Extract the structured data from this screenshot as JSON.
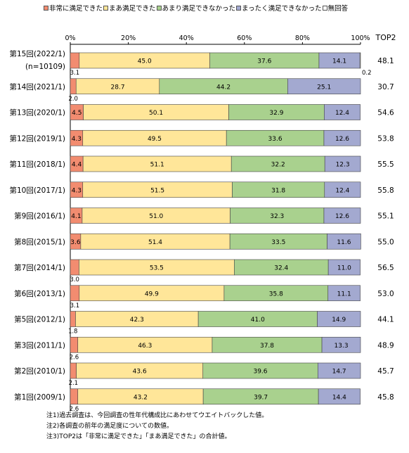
{
  "legend": [
    {
      "label": "非常に満足できた",
      "color": "#F28C70"
    },
    {
      "label": "まあ満足できた",
      "color": "#FFE699"
    },
    {
      "label": "あまり満足できなかった",
      "color": "#A9D18E"
    },
    {
      "label": "まったく満足できなかった",
      "color": "#A3A9D0"
    },
    {
      "label": "無回答",
      "color": "#FFFFFF"
    }
  ],
  "top2_header": "TOP2",
  "notes": [
    "注1)過去調査は、今回調査の性年代構成比にあわせてウエイトバックした値。",
    "注2)各調査の前年の満足度についての数値。",
    "注3)TOP2は「非常に満足できた」「まあ満足できた」の合計値。"
  ],
  "chart_data": {
    "type": "bar",
    "orientation": "horizontal",
    "stacked": true,
    "percent": true,
    "xlim": [
      0,
      100
    ],
    "x_ticks": [
      "0%",
      "20%",
      "40%",
      "60%",
      "80%",
      "100%"
    ],
    "categories": [
      {
        "label": "第15回(2022/1)",
        "sublabel": "(n=10109)"
      },
      {
        "label": "第14回(2021/1)"
      },
      {
        "label": "第13回(2020/1)"
      },
      {
        "label": "第12回(2019/1)"
      },
      {
        "label": "第11回(2018/1)"
      },
      {
        "label": "第10回(2017/1)"
      },
      {
        "label": "第9回(2016/1)"
      },
      {
        "label": "第8回(2015/1)"
      },
      {
        "label": "第7回(2014/1)"
      },
      {
        "label": "第6回(2013/1)"
      },
      {
        "label": "第5回(2012/1)"
      },
      {
        "label": "第3回(2011/1)"
      },
      {
        "label": "第2回(2010/1)"
      },
      {
        "label": "第1回(2009/1)"
      }
    ],
    "series": [
      {
        "name": "非常に満足できた",
        "color": "#F28C70",
        "values": [
          3.1,
          2.0,
          4.5,
          4.3,
          4.4,
          4.3,
          4.1,
          3.6,
          3.0,
          3.1,
          1.8,
          2.6,
          2.1,
          2.6
        ],
        "labels": [
          "3.1",
          "2.0",
          "4.5",
          "4.3",
          "4.4",
          "4.3",
          "4.1",
          "3.6",
          "3.0",
          "3.1",
          "1.8",
          "2.6",
          "2.1",
          "2.6"
        ]
      },
      {
        "name": "まあ満足できた",
        "color": "#FFE699",
        "values": [
          45.0,
          28.7,
          50.1,
          49.5,
          51.1,
          51.5,
          51.0,
          51.4,
          53.5,
          49.9,
          42.3,
          46.3,
          43.6,
          43.2
        ],
        "labels": [
          "45.0",
          "28.7",
          "50.1",
          "49.5",
          "51.1",
          "51.5",
          "51.0",
          "51.4",
          "53.5",
          "49.9",
          "42.3",
          "46.3",
          "43.6",
          "43.2"
        ]
      },
      {
        "name": "あまり満足できなかった",
        "color": "#A9D18E",
        "values": [
          37.6,
          44.2,
          32.9,
          33.6,
          32.2,
          31.8,
          32.3,
          33.5,
          32.4,
          35.8,
          41.0,
          37.8,
          39.6,
          39.7
        ],
        "labels": [
          "37.6",
          "44.2",
          "32.9",
          "33.6",
          "32.2",
          "31.8",
          "32.3",
          "33.5",
          "32.4",
          "35.8",
          "41.0",
          "37.8",
          "39.6",
          "39.7"
        ]
      },
      {
        "name": "まったく満足できなかった",
        "color": "#A3A9D0",
        "values": [
          14.1,
          25.1,
          12.4,
          12.6,
          12.3,
          12.4,
          12.6,
          11.6,
          11.0,
          11.1,
          14.9,
          13.3,
          14.7,
          14.4
        ],
        "labels": [
          "14.1",
          "25.1",
          "12.4",
          "12.6",
          "12.3",
          "12.4",
          "12.6",
          "11.6",
          "11.0",
          "11.1",
          "14.9",
          "13.3",
          "14.7",
          "14.4"
        ]
      },
      {
        "name": "無回答",
        "color": "#FFFFFF",
        "values": [
          0.2,
          0,
          0,
          0,
          0,
          0,
          0,
          0,
          0,
          0,
          0,
          0,
          0,
          0
        ],
        "labels": [
          "0.2",
          "",
          "",
          "",
          "",
          "",
          "",
          "",
          "",
          "",
          "",
          "",
          "",
          ""
        ]
      }
    ],
    "top2": [
      "48.1",
      "30.7",
      "54.6",
      "53.8",
      "55.5",
      "55.8",
      "55.1",
      "55.0",
      "56.5",
      "53.0",
      "44.1",
      "48.9",
      "45.7",
      "45.8"
    ]
  }
}
